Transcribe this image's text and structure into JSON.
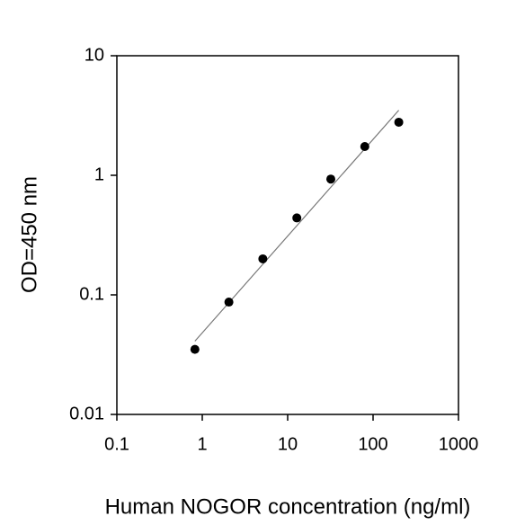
{
  "chart_data": {
    "type": "scatter",
    "x_label": "Human NOGOR concentration (ng/ml)",
    "y_label": "OD=450 nm",
    "x": [
      0.82,
      2.05,
      5.12,
      12.8,
      32,
      80,
      200
    ],
    "series": [
      {
        "color": "#000000",
        "values": [
          0.035,
          0.087,
          0.2,
          0.44,
          0.93,
          1.74,
          2.78
        ]
      }
    ],
    "fit": {
      "color": "#777777",
      "x": [
        0.82,
        200
      ],
      "values": [
        0.041,
        3.5
      ]
    },
    "xlim": [
      0.1,
      1000
    ],
    "xticks": [
      0.1,
      1,
      10,
      100,
      1000
    ],
    "ylim": [
      0.01,
      10
    ],
    "yticks": [
      0.01,
      0.1,
      1,
      10
    ],
    "log_x": true,
    "log_y": true,
    "grid": false
  }
}
